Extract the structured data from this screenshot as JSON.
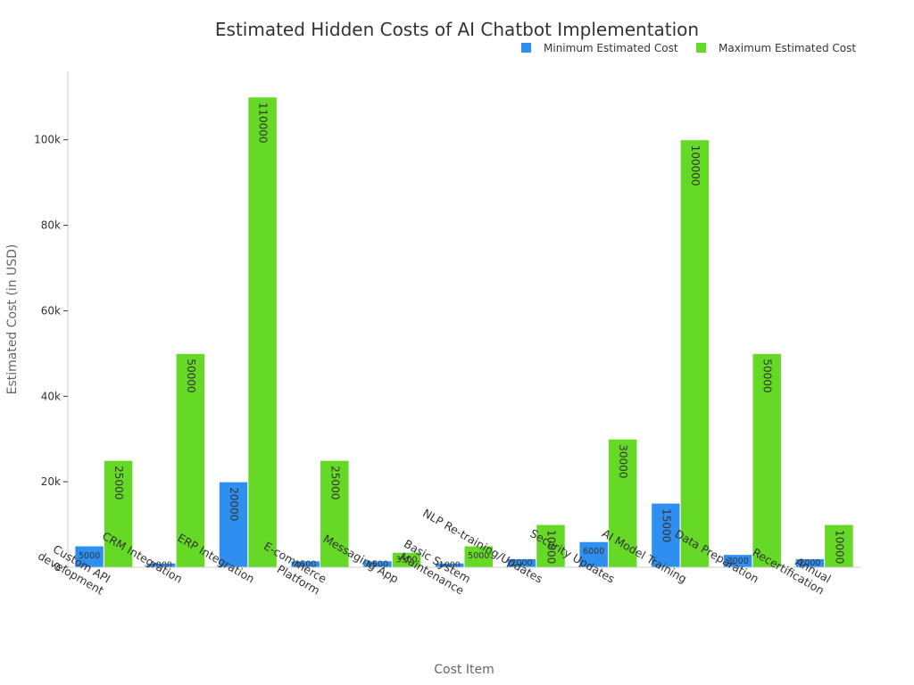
{
  "chart_data": {
    "type": "bar",
    "title": "Estimated Hidden Costs of AI Chatbot Implementation",
    "xlabel": "Cost Item",
    "ylabel": "Estimated Cost (in USD)",
    "ylim": [
      0,
      116000
    ],
    "yticks": [
      0,
      20000,
      40000,
      60000,
      80000,
      100000
    ],
    "ytick_labels": [
      "0",
      "20k",
      "40k",
      "60k",
      "80k",
      "100k"
    ],
    "grid": false,
    "legend_position": "top-right",
    "categories": [
      [
        "Custom API",
        "development"
      ],
      [
        "CRM Integration"
      ],
      [
        "ERP Integration"
      ],
      [
        "E-commerce",
        "Platform"
      ],
      [
        "Messaging App"
      ],
      [
        "Basic System",
        "Maintenance"
      ],
      [
        "NLP Re-training/Updates"
      ],
      [
        "Security Updates"
      ],
      [
        "AI Model Training"
      ],
      [
        "Data Preparation"
      ],
      [
        "Annual",
        "Recertification"
      ]
    ],
    "series": [
      {
        "name": "Minimum Estimated Cost",
        "color": "#2f8ff0",
        "values": [
          5000,
          1000,
          20000,
          1500,
          1500,
          1000,
          2000,
          6000,
          15000,
          3000,
          2000
        ]
      },
      {
        "name": "Maximum Estimated Cost",
        "color": "#66d926",
        "values": [
          25000,
          50000,
          110000,
          25000,
          3500,
          5000,
          10000,
          30000,
          100000,
          50000,
          10000
        ]
      }
    ]
  }
}
